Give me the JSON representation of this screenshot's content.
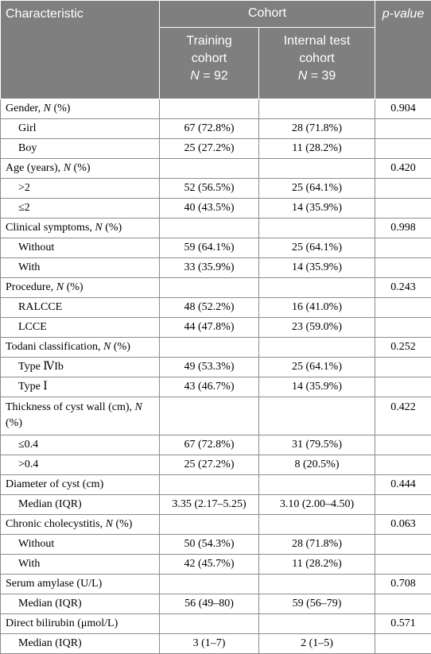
{
  "header": {
    "characteristic": "Characteristic",
    "cohort": "Cohort",
    "pvalue": "p-value",
    "training": {
      "line1": "Training",
      "line2": "cohort",
      "n_label": "N",
      "n_value": " = 92"
    },
    "internal": {
      "line1": "Internal test",
      "line2": "cohort",
      "n_label": "N",
      "n_value": " = 39"
    }
  },
  "rows": [
    {
      "type": "group",
      "label": "Gender, ",
      "n": "N",
      "suffix": " (%)",
      "training": "",
      "internal": "",
      "p": "0.904"
    },
    {
      "type": "sub",
      "label": "Girl",
      "training": "67 (72.8%)",
      "internal": "28 (71.8%)",
      "p": ""
    },
    {
      "type": "sub",
      "label": "Boy",
      "training": "25 (27.2%)",
      "internal": "11 (28.2%)",
      "p": ""
    },
    {
      "type": "group",
      "label": "Age (years), ",
      "n": "N",
      "suffix": " (%)",
      "training": "",
      "internal": "",
      "p": "0.420"
    },
    {
      "type": "sub",
      "label": ">2",
      "training": "52 (56.5%)",
      "internal": "25 (64.1%)",
      "p": ""
    },
    {
      "type": "sub",
      "label": "≤2",
      "training": "40 (43.5%)",
      "internal": "14 (35.9%)",
      "p": ""
    },
    {
      "type": "group",
      "label": "Clinical symptoms, ",
      "n": "N",
      "suffix": " (%)",
      "training": "",
      "internal": "",
      "p": "0.998"
    },
    {
      "type": "sub",
      "label": "Without",
      "training": "59 (64.1%)",
      "internal": "25 (64.1%)",
      "p": ""
    },
    {
      "type": "sub",
      "label": "With",
      "training": "33 (35.9%)",
      "internal": "14 (35.9%)",
      "p": ""
    },
    {
      "type": "group",
      "label": "Procedure, ",
      "n": "N",
      "suffix": " (%)",
      "training": "",
      "internal": "",
      "p": "0.243"
    },
    {
      "type": "sub",
      "label": "RALCCE",
      "training": "48 (52.2%)",
      "internal": "16 (41.0%)",
      "p": ""
    },
    {
      "type": "sub",
      "label": "LCCE",
      "training": "44 (47.8%)",
      "internal": "23 (59.0%)",
      "p": ""
    },
    {
      "type": "group",
      "label": "Todani classification, ",
      "n": "N",
      "suffix": " (%)",
      "training": "",
      "internal": "",
      "p": "0.252"
    },
    {
      "type": "sub",
      "label": "Type ⅣIb",
      "training": "49 (53.3%)",
      "internal": "25 (64.1%)",
      "p": ""
    },
    {
      "type": "sub",
      "label": "Type Ⅰ",
      "training": "43 (46.7%)",
      "internal": "14 (35.9%)",
      "p": ""
    },
    {
      "type": "group-tall",
      "label": "Thickness of cyst wall (cm), ",
      "n": "N",
      "suffix": " (%)",
      "training": "",
      "internal": "",
      "p": "0.422"
    },
    {
      "type": "sub",
      "label": "≤0.4",
      "training": "67 (72.8%)",
      "internal": "31 (79.5%)",
      "p": ""
    },
    {
      "type": "sub",
      "label": ">0.4",
      "training": "25 (27.2%)",
      "internal": "8 (20.5%)",
      "p": ""
    },
    {
      "type": "group",
      "label": "Diameter of cyst (cm)",
      "n": "",
      "suffix": "",
      "training": "",
      "internal": "",
      "p": "0.444"
    },
    {
      "type": "sub",
      "label": "Median (IQR)",
      "training": "3.35 (2.17–5.25)",
      "internal": "3.10 (2.00–4.50)",
      "p": ""
    },
    {
      "type": "group",
      "label": "Chronic cholecystitis, ",
      "n": "N",
      "suffix": " (%)",
      "training": "",
      "internal": "",
      "p": "0.063"
    },
    {
      "type": "sub",
      "label": "Without",
      "training": "50 (54.3%)",
      "internal": "28 (71.8%)",
      "p": ""
    },
    {
      "type": "sub",
      "label": "With",
      "training": "42 (45.7%)",
      "internal": "11 (28.2%)",
      "p": ""
    },
    {
      "type": "group",
      "label": "Serum amylase (U/L)",
      "n": "",
      "suffix": "",
      "training": "",
      "internal": "",
      "p": "0.708"
    },
    {
      "type": "sub",
      "label": "Median (IQR)",
      "training": "56 (49–80)",
      "internal": "59 (56–79)",
      "p": ""
    },
    {
      "type": "group",
      "label": "Direct bilirubin (μmol/L)",
      "n": "",
      "suffix": "",
      "training": "",
      "internal": "",
      "p": "0.571"
    },
    {
      "type": "sub",
      "label": "Median (IQR)",
      "training": "3 (1–7)",
      "internal": "2 (1–5)",
      "p": ""
    }
  ]
}
